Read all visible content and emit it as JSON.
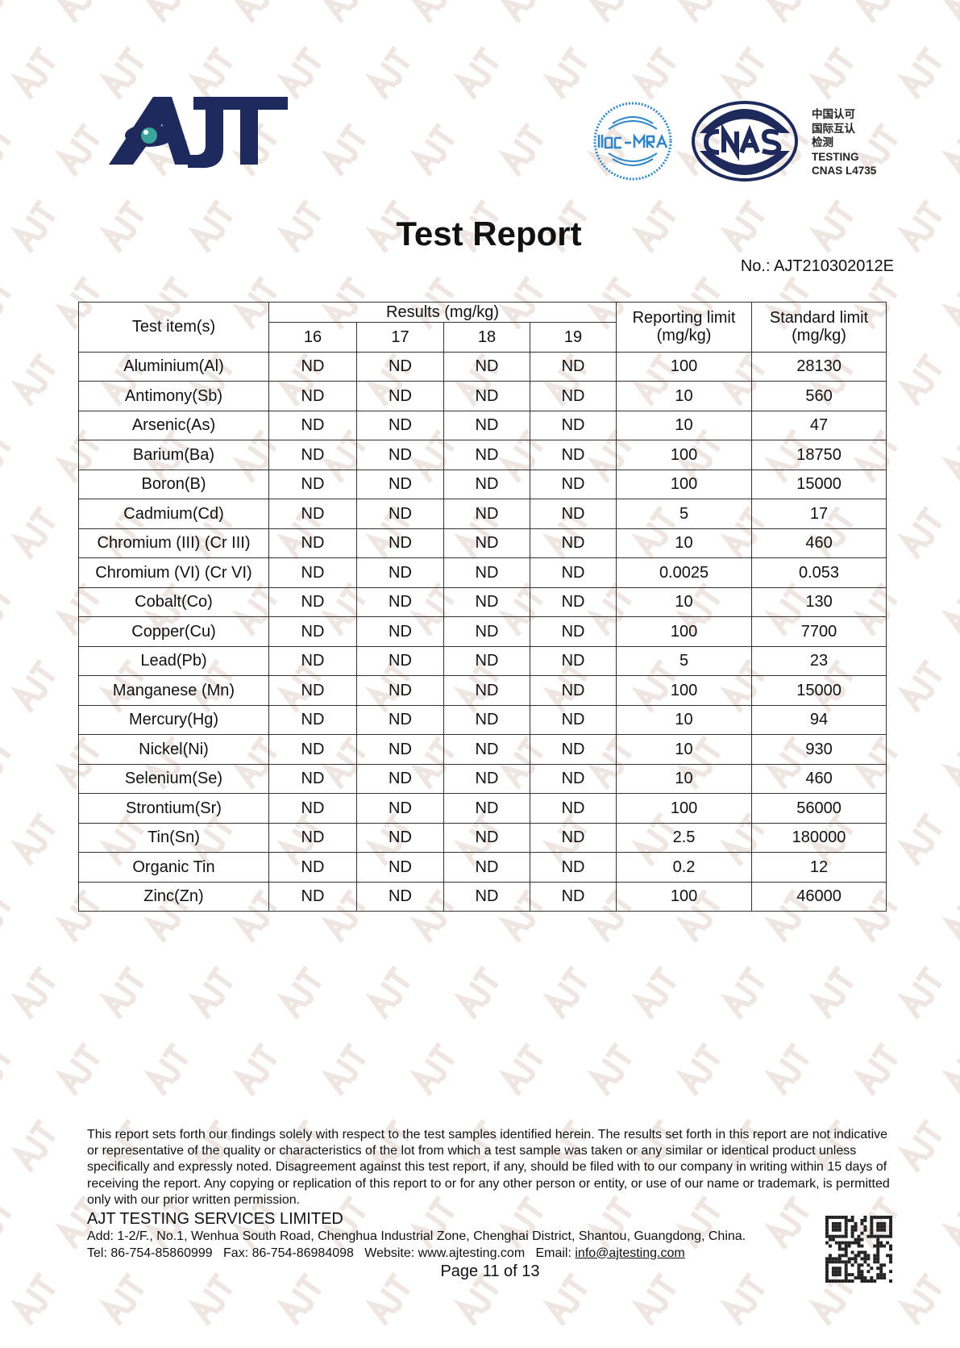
{
  "watermark": "AJT",
  "header": {
    "logo_text": "AJT",
    "ilac_text": "ilac-MRA",
    "cnas_text": "CNAS",
    "cnas_lines": [
      "中国认可",
      "国际互认",
      "检测",
      "TESTING",
      "CNAS L4735"
    ],
    "colors": {
      "navy": "#1f2a5c",
      "ilac_blue": "#2e86c8",
      "eye_teal": "#3aa59a"
    }
  },
  "title": "Test Report",
  "report_no": "No.: AJT210302012E",
  "table": {
    "head": {
      "item": "Test item(s)",
      "results": "Results (mg/kg)",
      "samples": [
        "16",
        "17",
        "18",
        "19"
      ],
      "reporting": "Reporting limit (mg/kg)",
      "standard": "Standard limit (mg/kg)"
    },
    "rows": [
      {
        "item": "Aluminium(Al)",
        "r": [
          "ND",
          "ND",
          "ND",
          "ND"
        ],
        "rl": "100",
        "sl": "28130"
      },
      {
        "item": "Antimony(Sb)",
        "r": [
          "ND",
          "ND",
          "ND",
          "ND"
        ],
        "rl": "10",
        "sl": "560"
      },
      {
        "item": "Arsenic(As)",
        "r": [
          "ND",
          "ND",
          "ND",
          "ND"
        ],
        "rl": "10",
        "sl": "47"
      },
      {
        "item": "Barium(Ba)",
        "r": [
          "ND",
          "ND",
          "ND",
          "ND"
        ],
        "rl": "100",
        "sl": "18750"
      },
      {
        "item": "Boron(B)",
        "r": [
          "ND",
          "ND",
          "ND",
          "ND"
        ],
        "rl": "100",
        "sl": "15000"
      },
      {
        "item": "Cadmium(Cd)",
        "r": [
          "ND",
          "ND",
          "ND",
          "ND"
        ],
        "rl": "5",
        "sl": "17"
      },
      {
        "item": "Chromium (III) (Cr III)",
        "r": [
          "ND",
          "ND",
          "ND",
          "ND"
        ],
        "rl": "10",
        "sl": "460"
      },
      {
        "item": "Chromium (VI) (Cr VI)",
        "r": [
          "ND",
          "ND",
          "ND",
          "ND"
        ],
        "rl": "0.0025",
        "sl": "0.053"
      },
      {
        "item": "Cobalt(Co)",
        "r": [
          "ND",
          "ND",
          "ND",
          "ND"
        ],
        "rl": "10",
        "sl": "130"
      },
      {
        "item": "Copper(Cu)",
        "r": [
          "ND",
          "ND",
          "ND",
          "ND"
        ],
        "rl": "100",
        "sl": "7700"
      },
      {
        "item": "Lead(Pb)",
        "r": [
          "ND",
          "ND",
          "ND",
          "ND"
        ],
        "rl": "5",
        "sl": "23"
      },
      {
        "item": "Manganese (Mn)",
        "r": [
          "ND",
          "ND",
          "ND",
          "ND"
        ],
        "rl": "100",
        "sl": "15000"
      },
      {
        "item": "Mercury(Hg)",
        "r": [
          "ND",
          "ND",
          "ND",
          "ND"
        ],
        "rl": "10",
        "sl": "94"
      },
      {
        "item": "Nickel(Ni)",
        "r": [
          "ND",
          "ND",
          "ND",
          "ND"
        ],
        "rl": "10",
        "sl": "930"
      },
      {
        "item": "Selenium(Se)",
        "r": [
          "ND",
          "ND",
          "ND",
          "ND"
        ],
        "rl": "10",
        "sl": "460"
      },
      {
        "item": "Strontium(Sr)",
        "r": [
          "ND",
          "ND",
          "ND",
          "ND"
        ],
        "rl": "100",
        "sl": "56000"
      },
      {
        "item": "Tin(Sn)",
        "r": [
          "ND",
          "ND",
          "ND",
          "ND"
        ],
        "rl": "2.5",
        "sl": "180000"
      },
      {
        "item": "Organic Tin",
        "r": [
          "ND",
          "ND",
          "ND",
          "ND"
        ],
        "rl": "0.2",
        "sl": "12"
      },
      {
        "item": "Zinc(Zn)",
        "r": [
          "ND",
          "ND",
          "ND",
          "ND"
        ],
        "rl": "100",
        "sl": "46000"
      }
    ]
  },
  "footer": {
    "disclaimer": "This report sets forth our findings solely with respect to the test samples identified herein. The results set forth in this report are not indicative or representative of the quality or characteristics of the lot from which a test sample was taken or any similar or identical product unless specifically and expressly noted. Disagreement against this test report, if any, should be filed with to our company in writing within 15 days of receiving the report. Any copying or replication of this report to or for any other person or entity, or use of our name or trademark, is permitted only with our prior written permission.",
    "company": "AJT TESTING SERVICES LIMITED",
    "address": "Add: 1-2/F., No.1, Wenhua South Road, Chenghua Industrial Zone, Chenghai District, Shantou, Guangdong, China.",
    "contact": "Tel: 86-754-85860999   Fax: 86-754-86984098   Website: www.ajtesting.com   Email: ",
    "email": "info@ajtesting.com",
    "page": "Page 11 of 13"
  }
}
